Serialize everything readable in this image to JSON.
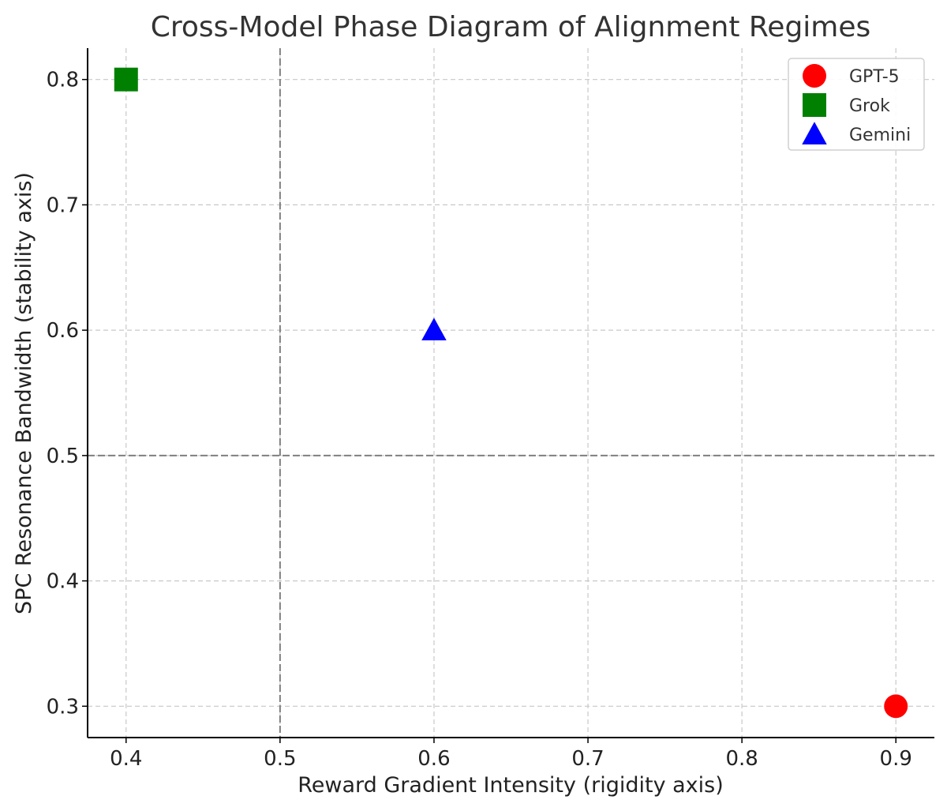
{
  "chart_data": {
    "type": "scatter",
    "title": "Cross-Model Phase Diagram of Alignment Regimes",
    "xlabel": "Reward Gradient Intensity (rigidity axis)",
    "ylabel": "SPC Resonance Bandwidth (stability axis)",
    "xlim": [
      0.375,
      0.925
    ],
    "ylim": [
      0.275,
      0.825
    ],
    "xticks": [
      0.4,
      0.5,
      0.6,
      0.7,
      0.8,
      0.9
    ],
    "yticks": [
      0.3,
      0.4,
      0.5,
      0.6,
      0.7,
      0.8
    ],
    "xtick_labels": [
      "0.4",
      "0.5",
      "0.6",
      "0.7",
      "0.8",
      "0.9"
    ],
    "ytick_labels": [
      "0.3",
      "0.4",
      "0.5",
      "0.6",
      "0.7",
      "0.8"
    ],
    "grid": true,
    "reference_lines": {
      "x": 0.5,
      "y": 0.5
    },
    "legend_position": "top-right",
    "series": [
      {
        "name": "GPT-5",
        "x": 0.9,
        "y": 0.3,
        "marker": "circle",
        "color": "#ff0000"
      },
      {
        "name": "Grok",
        "x": 0.4,
        "y": 0.8,
        "marker": "square",
        "color": "#008000"
      },
      {
        "name": "Gemini",
        "x": 0.6,
        "y": 0.6,
        "marker": "triangle",
        "color": "#0000ff"
      }
    ]
  }
}
